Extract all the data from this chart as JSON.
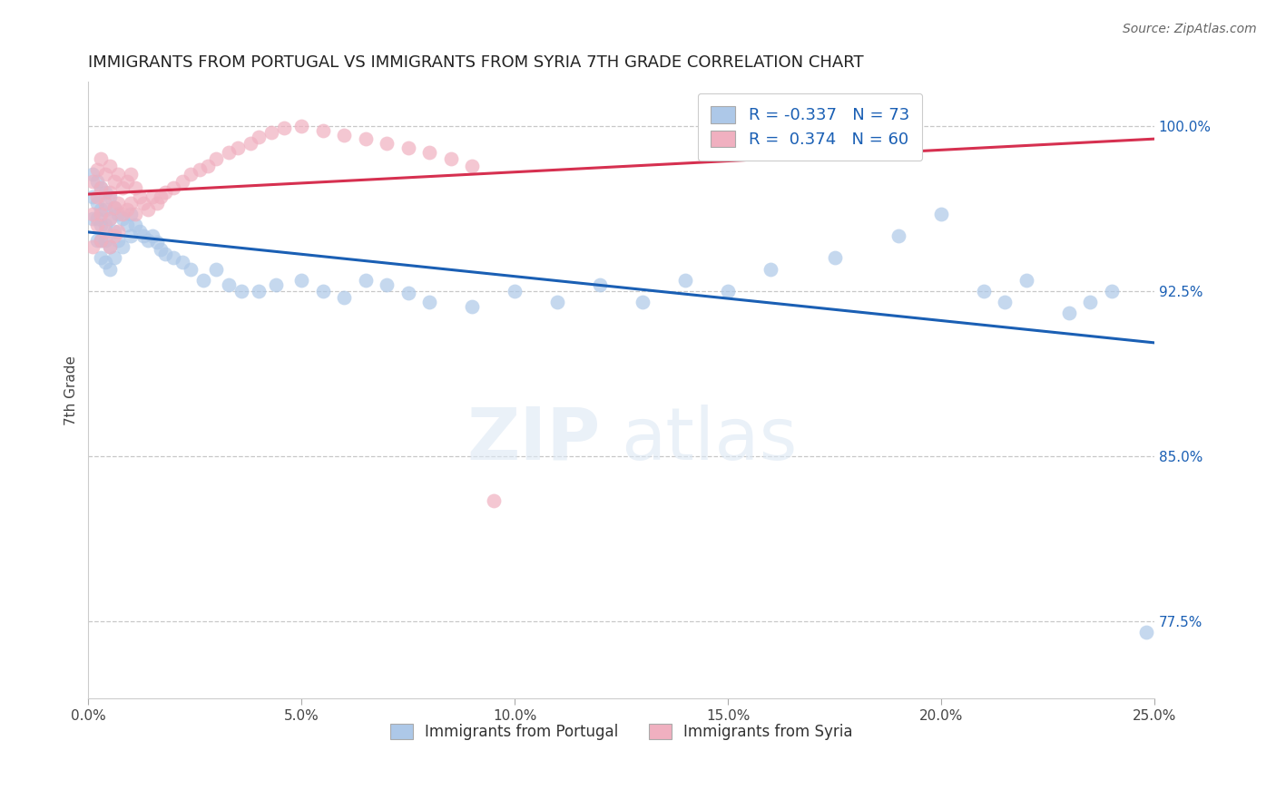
{
  "title": "IMMIGRANTS FROM PORTUGAL VS IMMIGRANTS FROM SYRIA 7TH GRADE CORRELATION CHART",
  "source_text": "Source: ZipAtlas.com",
  "ylabel": "7th Grade",
  "xlim": [
    0.0,
    0.25
  ],
  "ylim": [
    0.74,
    1.02
  ],
  "xticks": [
    0.0,
    0.05,
    0.1,
    0.15,
    0.2,
    0.25
  ],
  "xticklabels": [
    "0.0%",
    "5.0%",
    "10.0%",
    "15.0%",
    "20.0%",
    "25.0%"
  ],
  "yticks_right": [
    1.0,
    0.925,
    0.85,
    0.775
  ],
  "yticklabels_right": [
    "100.0%",
    "92.5%",
    "85.0%",
    "77.5%"
  ],
  "blue_R": -0.337,
  "blue_N": 73,
  "pink_R": 0.374,
  "pink_N": 60,
  "blue_color": "#adc8e8",
  "pink_color": "#f0b0c0",
  "blue_line_color": "#1a5fb4",
  "pink_line_color": "#d63050",
  "legend_label_blue": "Immigrants from Portugal",
  "legend_label_pink": "Immigrants from Syria",
  "watermark_zip": "ZIP",
  "watermark_atlas": "atlas",
  "blue_points_x": [
    0.001,
    0.001,
    0.001,
    0.002,
    0.002,
    0.002,
    0.002,
    0.003,
    0.003,
    0.003,
    0.003,
    0.003,
    0.004,
    0.004,
    0.004,
    0.004,
    0.004,
    0.005,
    0.005,
    0.005,
    0.005,
    0.006,
    0.006,
    0.006,
    0.007,
    0.007,
    0.008,
    0.008,
    0.009,
    0.01,
    0.01,
    0.011,
    0.012,
    0.013,
    0.014,
    0.015,
    0.016,
    0.017,
    0.018,
    0.02,
    0.022,
    0.024,
    0.027,
    0.03,
    0.033,
    0.036,
    0.04,
    0.044,
    0.05,
    0.055,
    0.06,
    0.065,
    0.07,
    0.075,
    0.08,
    0.09,
    0.1,
    0.11,
    0.12,
    0.13,
    0.14,
    0.15,
    0.16,
    0.175,
    0.19,
    0.2,
    0.21,
    0.215,
    0.22,
    0.23,
    0.235,
    0.24,
    0.248
  ],
  "blue_points_y": [
    0.978,
    0.968,
    0.958,
    0.975,
    0.965,
    0.958,
    0.948,
    0.972,
    0.962,
    0.955,
    0.948,
    0.94,
    0.97,
    0.962,
    0.955,
    0.948,
    0.938,
    0.968,
    0.958,
    0.945,
    0.935,
    0.963,
    0.952,
    0.94,
    0.96,
    0.948,
    0.958,
    0.945,
    0.955,
    0.96,
    0.95,
    0.955,
    0.952,
    0.95,
    0.948,
    0.95,
    0.947,
    0.944,
    0.942,
    0.94,
    0.938,
    0.935,
    0.93,
    0.935,
    0.928,
    0.925,
    0.925,
    0.928,
    0.93,
    0.925,
    0.922,
    0.93,
    0.928,
    0.924,
    0.92,
    0.918,
    0.925,
    0.92,
    0.928,
    0.92,
    0.93,
    0.925,
    0.935,
    0.94,
    0.95,
    0.96,
    0.925,
    0.92,
    0.93,
    0.915,
    0.92,
    0.925,
    0.77
  ],
  "pink_points_x": [
    0.001,
    0.001,
    0.001,
    0.002,
    0.002,
    0.002,
    0.003,
    0.003,
    0.003,
    0.003,
    0.004,
    0.004,
    0.004,
    0.005,
    0.005,
    0.005,
    0.005,
    0.006,
    0.006,
    0.006,
    0.007,
    0.007,
    0.007,
    0.008,
    0.008,
    0.009,
    0.009,
    0.01,
    0.01,
    0.011,
    0.011,
    0.012,
    0.013,
    0.014,
    0.015,
    0.016,
    0.017,
    0.018,
    0.02,
    0.022,
    0.024,
    0.026,
    0.028,
    0.03,
    0.033,
    0.035,
    0.038,
    0.04,
    0.043,
    0.046,
    0.05,
    0.055,
    0.06,
    0.065,
    0.07,
    0.075,
    0.08,
    0.085,
    0.09,
    0.095
  ],
  "pink_points_y": [
    0.975,
    0.96,
    0.945,
    0.98,
    0.968,
    0.955,
    0.985,
    0.972,
    0.96,
    0.948,
    0.978,
    0.965,
    0.952,
    0.982,
    0.97,
    0.958,
    0.945,
    0.975,
    0.963,
    0.95,
    0.978,
    0.965,
    0.952,
    0.972,
    0.96,
    0.975,
    0.962,
    0.978,
    0.965,
    0.972,
    0.96,
    0.968,
    0.965,
    0.962,
    0.968,
    0.965,
    0.968,
    0.97,
    0.972,
    0.975,
    0.978,
    0.98,
    0.982,
    0.985,
    0.988,
    0.99,
    0.992,
    0.995,
    0.997,
    0.999,
    1.0,
    0.998,
    0.996,
    0.994,
    0.992,
    0.99,
    0.988,
    0.985,
    0.982,
    0.83
  ]
}
